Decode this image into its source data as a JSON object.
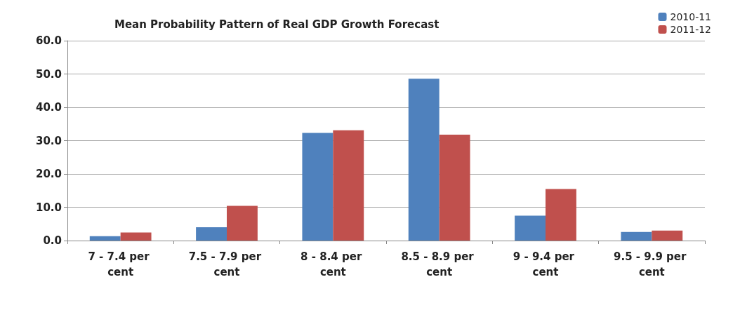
{
  "chart_data": {
    "type": "bar",
    "title": "Mean Probability Pattern of Real GDP Growth Forecast",
    "categories": [
      "7 - 7.4 per cent",
      "7.5 - 7.9 per cent",
      "8 - 8.4 per cent",
      "8.5 - 8.9 per cent",
      "9 - 9.4 per cent",
      "9.5 - 9.9 per cent"
    ],
    "series": [
      {
        "name": "2010-11",
        "color": "#4f81bd",
        "values": [
          1.3,
          4.0,
          32.3,
          48.6,
          7.5,
          2.6
        ]
      },
      {
        "name": "2011-12",
        "color": "#c0504d",
        "values": [
          2.4,
          10.4,
          33.1,
          31.8,
          15.5,
          3.0
        ]
      }
    ],
    "ylim": [
      0,
      60
    ],
    "yticks": [
      {
        "value": 0,
        "label": "0.0"
      },
      {
        "value": 10,
        "label": "10.0"
      },
      {
        "value": 20,
        "label": "20.0"
      },
      {
        "value": 30,
        "label": "30.0"
      },
      {
        "value": 40,
        "label": "40.0"
      },
      {
        "value": 50,
        "label": "50.0"
      },
      {
        "value": 60,
        "label": "60.0"
      }
    ],
    "grid": "y",
    "legend": "top right"
  }
}
